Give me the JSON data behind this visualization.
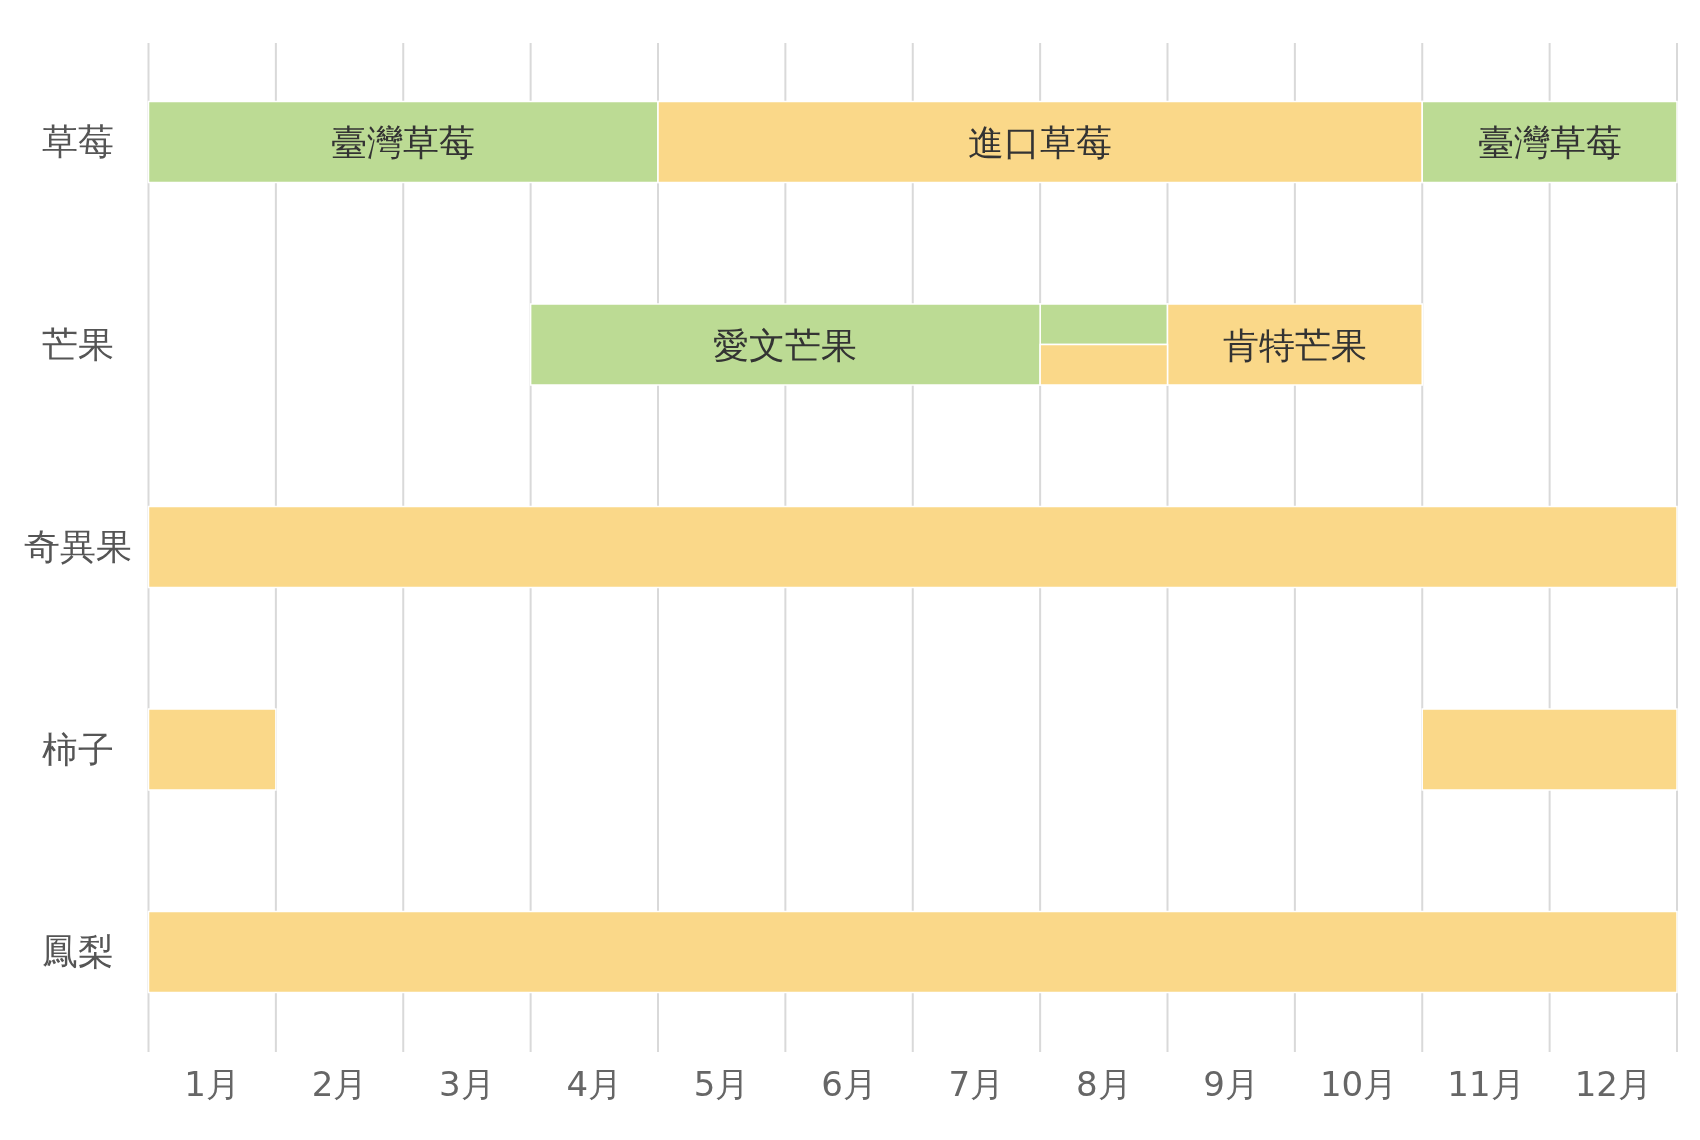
{
  "chart_data": {
    "type": "bar",
    "orientation": "horizontal",
    "categories": [
      "草莓",
      "芒果",
      "奇異果",
      "柿子",
      "鳳梨"
    ],
    "xlim": [
      0,
      12
    ],
    "grid": "x",
    "xticks": [
      {
        "value": 0,
        "label": null
      },
      {
        "value": 0.5,
        "label": "1月"
      },
      {
        "value": 1,
        "label": null
      },
      {
        "value": 1.5,
        "label": "2月"
      },
      {
        "value": 2,
        "label": null
      },
      {
        "value": 2.5,
        "label": "3月"
      },
      {
        "value": 3,
        "label": null
      },
      {
        "value": 3.5,
        "label": "4月"
      },
      {
        "value": 4,
        "label": null
      },
      {
        "value": 4.5,
        "label": "5月"
      },
      {
        "value": 5,
        "label": null
      },
      {
        "value": 5.5,
        "label": "6月"
      },
      {
        "value": 6,
        "label": null
      },
      {
        "value": 6.5,
        "label": "7月"
      },
      {
        "value": 7,
        "label": null
      },
      {
        "value": 7.5,
        "label": "8月"
      },
      {
        "value": 8,
        "label": null
      },
      {
        "value": 8.5,
        "label": "9月"
      },
      {
        "value": 9,
        "label": null
      },
      {
        "value": 9.5,
        "label": "10月"
      },
      {
        "value": 10,
        "label": null
      },
      {
        "value": 10.5,
        "label": "11月"
      },
      {
        "value": 11,
        "label": null
      },
      {
        "value": 11.5,
        "label": "12月"
      },
      {
        "value": 12,
        "label": null
      }
    ],
    "series": [
      {
        "color": "#bcdb94",
        "values": [
          4,
          1,
          null,
          null,
          null
        ],
        "base": [
          0,
          7,
          null,
          null,
          null
        ],
        "value_labels": [
          "臺灣草莓",
          null,
          null,
          null,
          null
        ]
      },
      {
        "color": "#fad889",
        "values": [
          6,
          2,
          12,
          1,
          12
        ],
        "base": [
          4,
          8,
          0,
          0,
          0
        ],
        "value_labels": [
          "進口草莓",
          "肯特芒果",
          null,
          null,
          null
        ]
      },
      {
        "color": "#bcdb94",
        "values": [
          2,
          4,
          null,
          null,
          null
        ],
        "base": [
          10,
          3,
          null,
          null,
          null
        ],
        "value_labels": [
          "臺灣草莓",
          "愛文芒果",
          null,
          null,
          null
        ]
      },
      {
        "color": "#fad889",
        "values": [
          null,
          1,
          null,
          2,
          null
        ],
        "base": [
          null,
          7,
          null,
          10,
          null
        ]
      }
    ]
  }
}
